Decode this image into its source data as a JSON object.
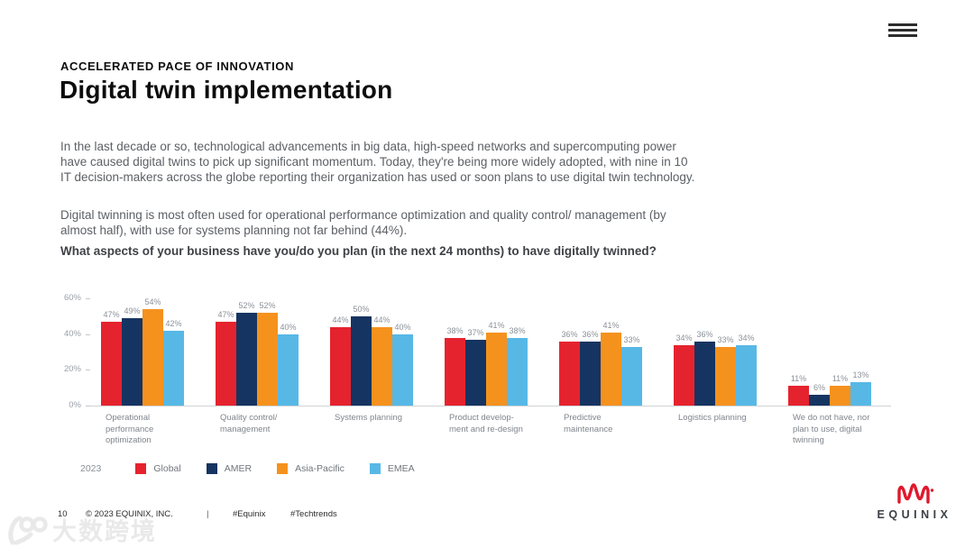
{
  "menu": {
    "icon": "hamburger-icon"
  },
  "header": {
    "eyebrow": "ACCELERATED PACE OF INNOVATION",
    "title": "Digital twin implementation"
  },
  "intro": {
    "paragraph1": "In the last decade or so, technological advancements in big data, high-speed networks and supercomputing power have caused digital twins to pick up significant momentum. Today, they're being more widely adopted, with nine in 10 IT decision-makers across the globe reporting their organization has used or soon plans to use digital twin technology.",
    "paragraph2": "Digital twinning is most often used for operational performance optimization and quality control/ management (by almost half), with use for systems planning not far behind (44%).",
    "question": "What aspects of your business have you/do you plan (in the next 24 months) to have digitally twinned?"
  },
  "chart_data": {
    "type": "bar",
    "title": "What aspects of your business have you/do you plan (in the next 24 months) to have digitally twinned?",
    "year_label": "2023",
    "categories": [
      "Operational\nperformance\noptimization",
      "Quality control/\nmanagement",
      "Systems planning",
      "Product develop-\nment and re-design",
      "Predictive\nmaintenance",
      "Logistics planning",
      "We do not have, nor\nplan to use, digital\ntwinning"
    ],
    "series": [
      {
        "name": "Global",
        "color": "#E5232E",
        "values": [
          47,
          47,
          44,
          38,
          36,
          34,
          11
        ]
      },
      {
        "name": "AMER",
        "color": "#163461",
        "values": [
          49,
          52,
          50,
          37,
          36,
          36,
          6
        ]
      },
      {
        "name": "Asia-Pacific",
        "color": "#F5921E",
        "values": [
          54,
          52,
          44,
          41,
          41,
          33,
          11
        ]
      },
      {
        "name": "EMEA",
        "color": "#57B8E6",
        "values": [
          42,
          40,
          40,
          38,
          33,
          34,
          13
        ]
      }
    ],
    "value_suffix": "%",
    "xlabel": "",
    "ylabel": "",
    "ylim": [
      0,
      60
    ],
    "yticks": [
      0,
      20,
      40,
      60
    ],
    "ytick_suffix": "%",
    "grid": false,
    "legend_position": "bottom-left"
  },
  "footer": {
    "page_number": "10",
    "copyright": "© 2023 EQUINIX, INC.",
    "separator": "|",
    "hashtags": [
      "#Equinix",
      "#Techtrends"
    ]
  },
  "branding": {
    "logo_text": "EQUINIX",
    "logo_color": "#E0182D"
  },
  "watermark": {
    "text": "大数跨境"
  }
}
